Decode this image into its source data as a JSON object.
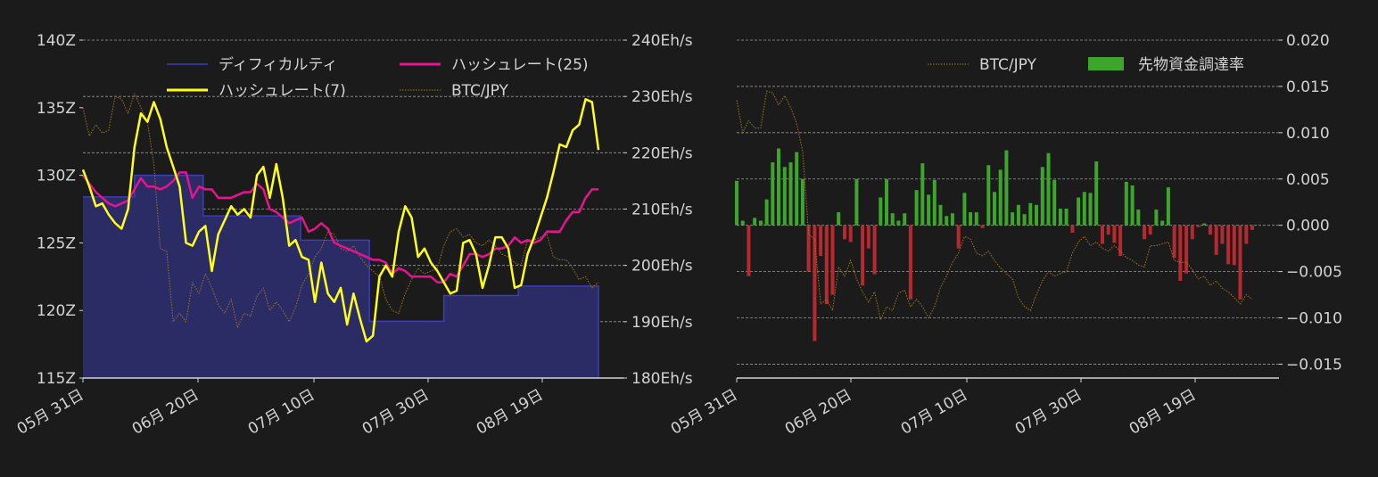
{
  "chart_data": [
    {
      "type": "line",
      "x_tick_labels": [
        "05月 31日",
        "06月 20日",
        "07月 10日",
        "07月 30日",
        "08月 19日"
      ],
      "y_left_ticks": [
        "115Z",
        "120Z",
        "125Z",
        "130Z",
        "135Z",
        "140Z"
      ],
      "y_left_range": [
        115,
        140
      ],
      "y_right_ticks": [
        "180Eh/s",
        "190Eh/s",
        "200Eh/s",
        "210Eh/s",
        "220Eh/s",
        "230Eh/s",
        "240Eh/s"
      ],
      "y_right_range": [
        180,
        240
      ],
      "grid": "horizontal dashed",
      "legend_position": "top",
      "series": [
        {
          "name": "ディフィカルティ",
          "color": "#3b3fb8",
          "fill": "#2b2b66",
          "axis": "left",
          "style": "step-area",
          "values": [
            128.4,
            128.4,
            128.4,
            128.4,
            128.4,
            128.4,
            128.4,
            128.4,
            128.4,
            130.0,
            130.0,
            130.0,
            130.0,
            130.0,
            130.0,
            130.0,
            130.0,
            130.0,
            130.0,
            130.0,
            130.0,
            127.0,
            127.0,
            127.0,
            127.0,
            127.0,
            127.0,
            127.0,
            127.0,
            127.0,
            127.0,
            127.0,
            127.0,
            127.0,
            127.0,
            127.0,
            127.0,
            127.0,
            125.2,
            125.2,
            125.2,
            125.2,
            125.2,
            125.2,
            125.2,
            125.2,
            125.2,
            125.2,
            125.2,
            125.2,
            119.2,
            119.2,
            119.2,
            119.2,
            119.2,
            119.2,
            119.2,
            119.2,
            119.2,
            119.2,
            119.2,
            119.2,
            119.2,
            121.1,
            121.1,
            121.1,
            121.1,
            121.1,
            121.1,
            121.1,
            121.1,
            121.1,
            121.1,
            121.1,
            121.1,
            121.1,
            121.8,
            121.8,
            121.8,
            121.8,
            121.8,
            121.8,
            121.8,
            121.8,
            121.8,
            121.8,
            121.8,
            121.8,
            121.8,
            121.8,
            121.8
          ]
        },
        {
          "name": "ハッシュレート(25)",
          "color": "#e4158f",
          "axis": "right",
          "values": [
            216.0,
            214.5,
            213.0,
            212.0,
            211.0,
            210.5,
            211.0,
            211.5,
            213.5,
            215.5,
            214.0,
            214.0,
            213.5,
            214.0,
            215.0,
            216.5,
            216.5,
            212.0,
            214.0,
            213.5,
            213.5,
            212.0,
            212.0,
            212.0,
            212.5,
            213.0,
            213.0,
            214.5,
            213.5,
            210.0,
            209.5,
            208.5,
            207.5,
            208.0,
            208.5,
            206.0,
            206.5,
            207.5,
            206.5,
            204.0,
            203.5,
            203.0,
            202.5,
            202.0,
            201.5,
            201.0,
            201.0,
            200.5,
            198.5,
            199.5,
            199.0,
            198.0,
            198.0,
            198.0,
            198.0,
            197.0,
            197.0,
            198.5,
            198.0,
            200.0,
            202.0,
            202.0,
            201.5,
            202.0,
            203.0,
            203.0,
            203.5,
            205.0,
            204.0,
            204.5,
            204.0,
            204.5,
            206.0,
            206.0,
            206.0,
            208.0,
            209.5,
            209.5,
            212.0,
            213.5,
            213.5
          ]
        },
        {
          "name": "ハッシュレート(7)",
          "color": "#ffff1a",
          "axis": "right",
          "values": [
            217.0,
            214.0,
            210.5,
            211.0,
            209.0,
            207.5,
            206.5,
            210.0,
            221.0,
            227.0,
            225.5,
            229.0,
            226.0,
            221.0,
            217.5,
            214.0,
            204.0,
            203.5,
            206.0,
            207.0,
            199.0,
            205.5,
            208.0,
            210.5,
            209.0,
            210.0,
            208.5,
            216.0,
            217.5,
            212.0,
            218.0,
            212.0,
            203.5,
            204.5,
            201.5,
            201.0,
            193.5,
            200.5,
            195.0,
            193.5,
            196.0,
            189.5,
            195.0,
            190.5,
            186.5,
            187.5,
            198.0,
            200.0,
            198.0,
            206.0,
            210.5,
            208.5,
            201.5,
            203.0,
            200.5,
            199.0,
            197.0,
            195.0,
            195.5,
            204.0,
            204.5,
            202.0,
            196.0,
            200.0,
            205.0,
            205.0,
            203.0,
            196.0,
            196.5,
            202.0,
            205.0,
            208.5,
            212.0,
            216.5,
            221.5,
            221.0,
            224.0,
            225.0,
            229.5,
            229.0,
            220.5
          ]
        },
        {
          "name": "BTC/JPY",
          "color": "#a07820",
          "style": "dotted",
          "axis": "right",
          "values": [
            228.0,
            223.0,
            225.0,
            223.5,
            224.0,
            230.0,
            229.5,
            227.0,
            230.5,
            228.0,
            225.5,
            218.0,
            203.0,
            202.5,
            190.0,
            191.5,
            190.0,
            197.0,
            195.0,
            198.5,
            196.0,
            193.0,
            191.5,
            194.0,
            189.0,
            191.5,
            191.0,
            194.5,
            196.0,
            192.0,
            193.5,
            192.0,
            190.0,
            192.5,
            196.5,
            198.5,
            201.5,
            203.0,
            206.0,
            205.5,
            203.0,
            202.5,
            203.5,
            201.5,
            200.0,
            199.0,
            198.0,
            194.0,
            192.0,
            191.5,
            195.0,
            197.5,
            199.5,
            198.5,
            199.0,
            199.5,
            203.5,
            206.0,
            206.5,
            205.0,
            205.5,
            204.0,
            203.5,
            204.5,
            203.5,
            202.0,
            201.5,
            200.5,
            200.0,
            204.5,
            204.5,
            205.0,
            205.5,
            201.5,
            201.0,
            201.0,
            199.5,
            197.5,
            198.0,
            196.0,
            197.0
          ]
        }
      ]
    },
    {
      "type": "bar",
      "x_tick_labels": [
        "05月 31日",
        "06月 20日",
        "07月 10日",
        "07月 30日",
        "08月 19日"
      ],
      "y_right_ticks": [
        "0.020",
        "0.015",
        "0.010",
        "0.005",
        "0.000",
        "−0.005",
        "−0.010",
        "−0.015"
      ],
      "y_range": [
        -0.0165,
        0.02
      ],
      "grid": "horizontal dashed",
      "legend_position": "top-right",
      "series": [
        {
          "name": "先物資金調達率",
          "color_positive": "#3da52b",
          "color_negative": "#b52a2e",
          "values": [
            0.0048,
            0.0005,
            -0.0055,
            0.0008,
            0.0005,
            0.0028,
            0.0068,
            0.0083,
            0.0063,
            0.0068,
            0.0079,
            0.005,
            -0.005,
            -0.0125,
            -0.0033,
            -0.0085,
            -0.0075,
            0.0014,
            -0.0015,
            -0.0018,
            0.005,
            -0.0065,
            -0.0025,
            -0.0053,
            0.003,
            0.005,
            0.0013,
            0.0005,
            0.0013,
            -0.008,
            0.0038,
            0.0067,
            0.0033,
            0.0049,
            0.0022,
            0.001,
            0.0013,
            -0.0025,
            0.0035,
            0.0014,
            0.0014,
            -0.0003,
            0.0065,
            0.0036,
            0.006,
            0.0081,
            0.0014,
            0.0022,
            0.0012,
            0.0024,
            0.0022,
            0.0063,
            0.0078,
            0.0049,
            0.0018,
            0.0018,
            -0.0008,
            0.003,
            0.0036,
            0.0035,
            0.0069,
            -0.002,
            -0.001,
            -0.0019,
            -0.0033,
            0.0047,
            0.0043,
            0.0017,
            -0.0015,
            -0.001,
            0.0017,
            0.0005,
            0.0041,
            -0.0035,
            -0.006,
            -0.0052,
            -0.0015,
            -0.0002,
            0.0002,
            -0.001,
            -0.0032,
            -0.002,
            -0.0042,
            -0.0043,
            -0.008,
            -0.002,
            -0.0005
          ]
        },
        {
          "name": "BTC/JPY",
          "color": "#a07820",
          "style": "dotted",
          "values": [
            0.0135,
            0.01,
            0.0113,
            0.0105,
            0.0105,
            0.0145,
            0.0143,
            0.013,
            0.014,
            0.0127,
            0.011,
            0.008,
            -0.001,
            -0.0015,
            -0.0085,
            -0.008,
            -0.0092,
            -0.0045,
            -0.0055,
            -0.0038,
            -0.0058,
            -0.0072,
            -0.0083,
            -0.0072,
            -0.0102,
            -0.0088,
            -0.0092,
            -0.0073,
            -0.007,
            -0.0088,
            -0.008,
            -0.0088,
            -0.01,
            -0.0088,
            -0.0067,
            -0.0055,
            -0.004,
            -0.003,
            -0.0012,
            -0.0015,
            -0.003,
            -0.0033,
            -0.0028,
            -0.0038,
            -0.0046,
            -0.0052,
            -0.0058,
            -0.0078,
            -0.0088,
            -0.0092,
            -0.0075,
            -0.006,
            -0.005,
            -0.0055,
            -0.0052,
            -0.005,
            -0.003,
            -0.0018,
            -0.0012,
            -0.0022,
            -0.0018,
            -0.0025,
            -0.0028,
            -0.0022,
            -0.0028,
            -0.0035,
            -0.0038,
            -0.0043,
            -0.0045,
            -0.0022,
            -0.0022,
            -0.002,
            -0.0018,
            -0.0038,
            -0.004,
            -0.004,
            -0.0048,
            -0.0058,
            -0.0055,
            -0.0065,
            -0.006,
            -0.0068,
            -0.0072,
            -0.0078,
            -0.0085,
            -0.0075,
            -0.008
          ]
        }
      ]
    }
  ]
}
